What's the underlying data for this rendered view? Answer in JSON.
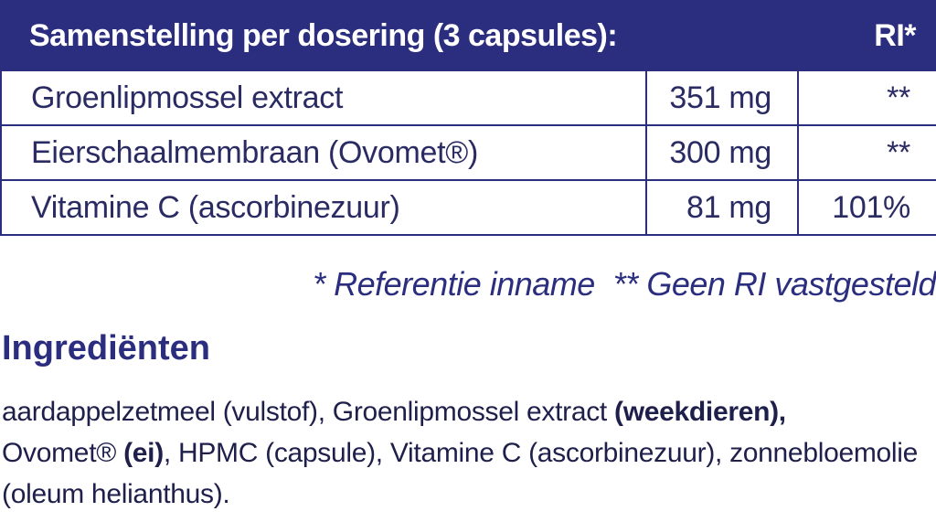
{
  "table": {
    "header": {
      "composition": "Samenstelling per dosering (3 capsules):",
      "ri": "RI*"
    },
    "rows": [
      {
        "name": "Groenlipmossel extract",
        "amount": "351 mg",
        "ri": "**"
      },
      {
        "name": "Eierschaalmembraan (Ovomet®)",
        "amount": "300 mg",
        "ri": "**"
      },
      {
        "name": "Vitamine C (ascorbinezuur)",
        "amount": "81 mg",
        "ri": "101%"
      }
    ]
  },
  "footnotes": {
    "ri_reference": "* Referentie inname",
    "no_ri": "** Geen RI vastgesteld"
  },
  "ingredients": {
    "title": "Ingrediënten",
    "parts": [
      {
        "text": "aardappelzetmeel (vulstof), Groenlipmossel extract ",
        "bold": false
      },
      {
        "text": "(weekdieren),",
        "bold": true
      },
      {
        "text": " Ovomet® ",
        "bold": false
      },
      {
        "text": "(ei)",
        "bold": true
      },
      {
        "text": ", HPMC (capsule), Vitamine C (ascorbinezuur), zonnebloemolie (oleum helianthus).",
        "bold": false
      }
    ]
  },
  "colors": {
    "brand_navy": "#2b2d7e",
    "text_dark": "#1e1f4a",
    "header_text": "#ffffff"
  }
}
